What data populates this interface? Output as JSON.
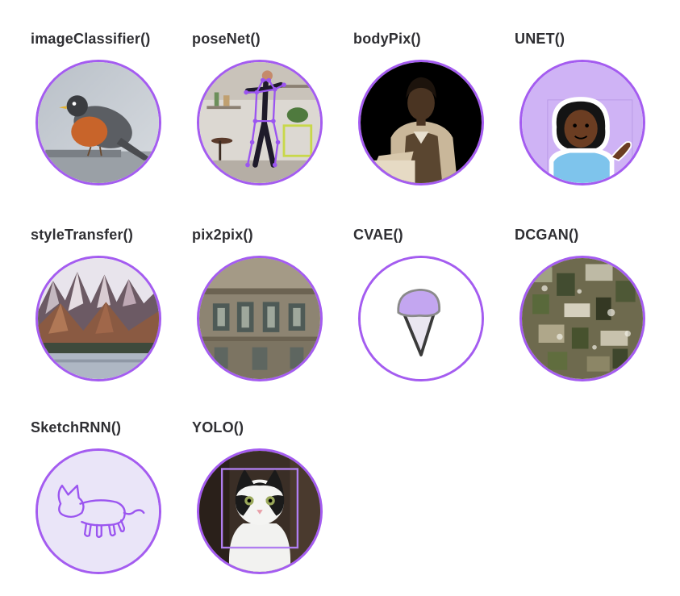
{
  "theme": {
    "accent": "#a45cf0",
    "title_color": "#2f2f33",
    "light_fill": "#cfb3f5"
  },
  "models": [
    {
      "label": "imageClassifier()",
      "icon": "robin-bird-photo-icon"
    },
    {
      "label": "poseNet()",
      "icon": "pose-skeleton-photo-icon"
    },
    {
      "label": "bodyPix()",
      "icon": "portrait-segmentation-photo-icon"
    },
    {
      "label": "UNET()",
      "icon": "person-emoji-icon"
    },
    {
      "label": "styleTransfer()",
      "icon": "stylized-mountains-icon"
    },
    {
      "label": "pix2pix()",
      "icon": "generated-facade-icon"
    },
    {
      "label": "CVAE()",
      "icon": "ice-cream-cone-icon"
    },
    {
      "label": "DCGAN()",
      "icon": "gan-noise-texture-icon"
    },
    {
      "label": "SketchRNN()",
      "icon": "cat-sketch-icon"
    },
    {
      "label": "YOLO()",
      "icon": "cat-bounding-box-photo-icon"
    }
  ]
}
